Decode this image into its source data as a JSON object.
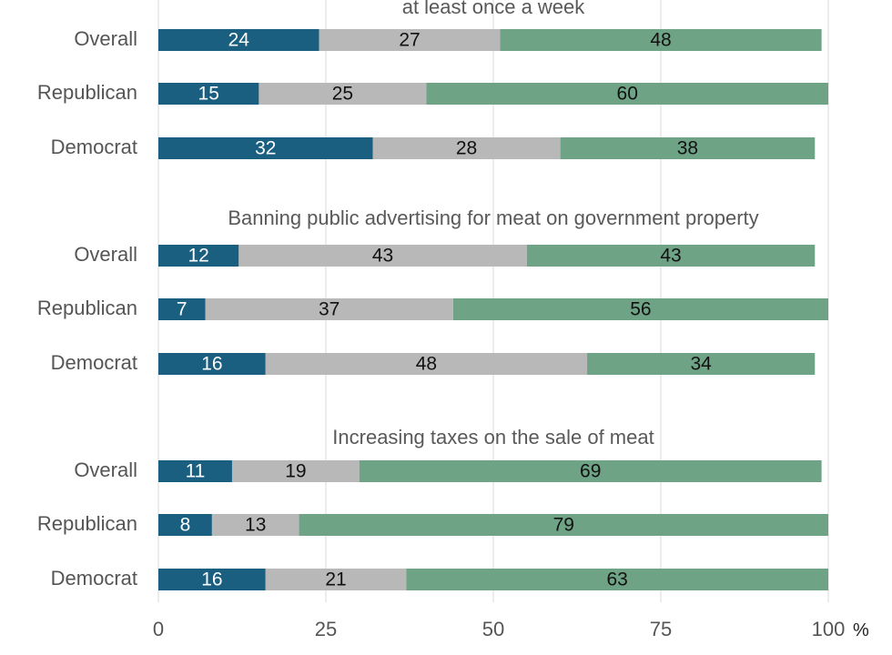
{
  "chart_data": {
    "type": "bar",
    "orientation": "horizontal",
    "stacked": true,
    "xlim": [
      0,
      100
    ],
    "x_ticks": [
      0,
      25,
      50,
      75,
      100
    ],
    "x_tick_labels": [
      "0",
      "25",
      "50",
      "75",
      "100"
    ],
    "x_unit": "%",
    "grid": "vertical",
    "colors": [
      "#1a5e80",
      "#b8b8b8",
      "#6fa386"
    ],
    "label_colors": [
      "#ffffff",
      "#111111",
      "#111111"
    ],
    "groups": [
      {
        "title": "at least once a week",
        "rows": [
          {
            "label": "Overall",
            "values": [
              24,
              27,
              48
            ]
          },
          {
            "label": "Republican",
            "values": [
              15,
              25,
              60
            ]
          },
          {
            "label": "Democrat",
            "values": [
              32,
              28,
              38
            ]
          }
        ]
      },
      {
        "title": "Banning public advertising for meat on government property",
        "rows": [
          {
            "label": "Overall",
            "values": [
              12,
              43,
              43
            ]
          },
          {
            "label": "Republican",
            "values": [
              7,
              37,
              56
            ]
          },
          {
            "label": "Democrat",
            "values": [
              16,
              48,
              34
            ]
          }
        ]
      },
      {
        "title": "Increasing taxes on the sale of meat",
        "rows": [
          {
            "label": "Overall",
            "values": [
              11,
              19,
              69
            ]
          },
          {
            "label": "Republican",
            "values": [
              8,
              13,
              79
            ]
          },
          {
            "label": "Democrat",
            "values": [
              16,
              21,
              63
            ]
          }
        ]
      }
    ]
  }
}
